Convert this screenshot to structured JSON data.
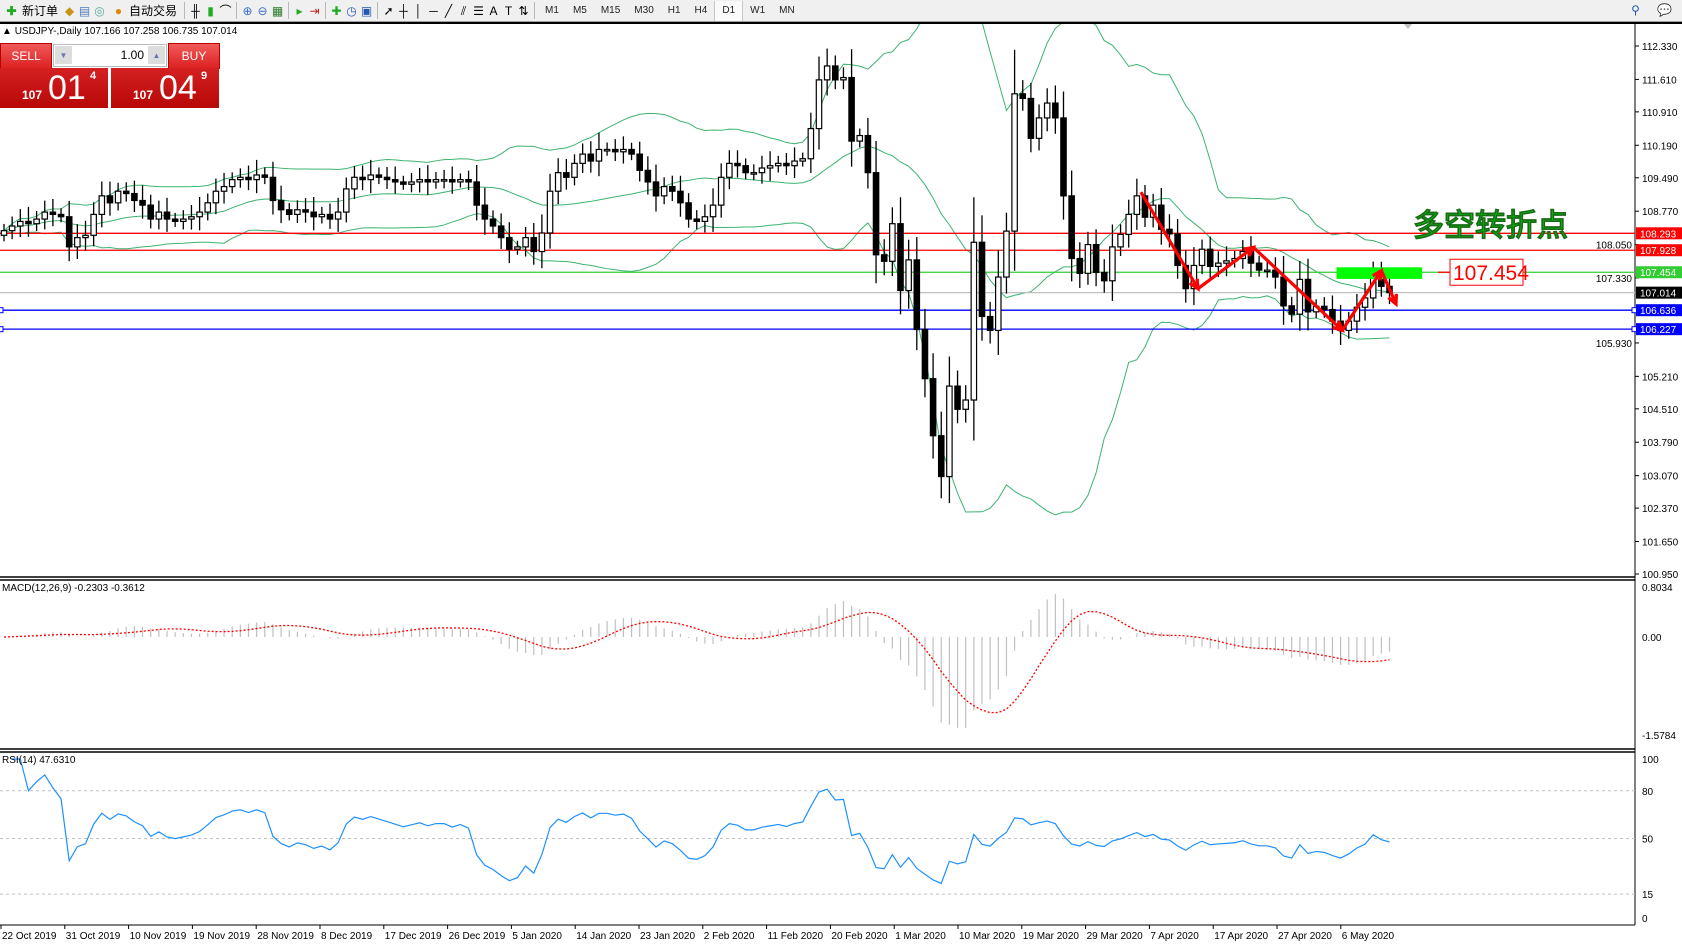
{
  "toolbar": {
    "new_order": "新订单",
    "auto_trading": "自动交易",
    "timeframes": [
      "M1",
      "M5",
      "M15",
      "M30",
      "H1",
      "H4",
      "D1",
      "W1",
      "MN"
    ],
    "active_timeframe": "D1"
  },
  "chart_info": "USDJPY-,Daily  107.166 107.258 106.735 107.014",
  "trade_panel": {
    "sell": "SELL",
    "buy": "BUY",
    "lots": "1.00",
    "bid_prefix": "107",
    "bid_main": "01",
    "bid_pip": "4",
    "ask_prefix": "107",
    "ask_main": "04",
    "ask_pip": "9"
  },
  "chart_data": {
    "type": "candlestick",
    "symbol": "USDJPY-",
    "timeframe": "Daily",
    "ylim": [
      100.95,
      112.33
    ],
    "closes": [
      108.35,
      108.45,
      108.55,
      108.5,
      108.6,
      108.75,
      108.7,
      108.65,
      108.0,
      108.2,
      108.25,
      108.7,
      109.1,
      108.95,
      109.2,
      109.15,
      109.0,
      108.9,
      108.6,
      108.75,
      108.6,
      108.55,
      108.6,
      108.65,
      108.75,
      108.95,
      109.2,
      109.3,
      109.45,
      109.5,
      109.45,
      109.55,
      109.5,
      109.0,
      108.8,
      108.7,
      108.8,
      108.75,
      108.65,
      108.7,
      108.6,
      108.75,
      109.25,
      109.5,
      109.45,
      109.55,
      109.5,
      109.45,
      109.4,
      109.35,
      109.4,
      109.45,
      109.4,
      109.45,
      109.45,
      109.4,
      109.45,
      109.4,
      108.9,
      108.6,
      108.45,
      108.2,
      107.95,
      108.0,
      108.2,
      107.9,
      108.3,
      109.2,
      109.6,
      109.5,
      109.8,
      110.0,
      109.85,
      110.1,
      110.1,
      110.05,
      110.1,
      110.0,
      109.65,
      109.4,
      109.1,
      109.3,
      109.2,
      108.95,
      108.6,
      108.55,
      108.65,
      108.9,
      109.5,
      109.8,
      109.75,
      109.6,
      109.6,
      109.7,
      109.75,
      109.8,
      109.75,
      109.85,
      109.9,
      110.55,
      111.6,
      111.9,
      111.6,
      111.65,
      110.28,
      110.4,
      109.6,
      107.83,
      107.69,
      108.5,
      107.06,
      107.72,
      106.22,
      105.16,
      103.93,
      103.05,
      105.0,
      104.5,
      104.7,
      108.1,
      106.5,
      106.2,
      107.35,
      108.34,
      111.3,
      111.2,
      110.34,
      110.78,
      111.1,
      110.78,
      109.1,
      107.75,
      107.43,
      108.05,
      107.45,
      107.27,
      108.0,
      108.27,
      108.7,
      109.1,
      108.64,
      108.9,
      108.38,
      108.28,
      107.6,
      107.1,
      107.6,
      107.95,
      107.58,
      107.65,
      107.7,
      107.75,
      107.9,
      107.65,
      107.5,
      107.5,
      107.35,
      106.73,
      106.55,
      107.3,
      106.6,
      106.72,
      106.65,
      106.4,
      106.2,
      106.4,
      106.7,
      106.9,
      107.43,
      107.15,
      107.014
    ],
    "price_ticks": [
      "112.330",
      "111.610",
      "110.910",
      "110.190",
      "109.490",
      "108.770",
      "108.050",
      "107.330",
      "105.930",
      "105.210",
      "104.510",
      "103.790",
      "103.070",
      "102.370",
      "101.650",
      "100.950"
    ],
    "date_labels": [
      "22 Oct 2019",
      "31 Oct 2019",
      "10 Nov 2019",
      "19 Nov 2019",
      "28 Nov 2019",
      "8 Dec 2019",
      "17 Dec 2019",
      "26 Dec 2019",
      "5 Jan 2020",
      "14 Jan 2020",
      "23 Jan 2020",
      "2 Feb 2020",
      "11 Feb 2020",
      "20 Feb 2020",
      "1 Mar 2020",
      "10 Mar 2020",
      "19 Mar 2020",
      "29 Mar 2020",
      "7 Apr 2020",
      "17 Apr 2020",
      "27 Apr 2020",
      "6 May 2020"
    ],
    "horizontal_lines": [
      {
        "price": 108.293,
        "label": "108.293",
        "color": "#ff0000"
      },
      {
        "price": 107.928,
        "label": "107.928",
        "color": "#ff0000"
      },
      {
        "price": 107.454,
        "label": "107.454",
        "color": "#32cd32"
      },
      {
        "price": 107.014,
        "label": "107.014",
        "color": "#c0c0c0",
        "tag_color": "#000000"
      },
      {
        "price": 106.636,
        "label": "106.636",
        "color": "#0000ff"
      },
      {
        "price": 106.227,
        "label": "106.227",
        "color": "#0000ff"
      }
    ],
    "bollinger": {
      "period": 20,
      "deviation": 2,
      "color": "#3cb371"
    },
    "annotation_text": "多空转折点",
    "annotation_color": "#00cc00",
    "price_label": "107.454",
    "zone": {
      "bar_from": 163.5,
      "bar_to": 174,
      "price_top": 107.56,
      "price_bottom": 107.31,
      "color": "#00ff00"
    },
    "zigzag": [
      {
        "bar": 139.5,
        "price": 109.18
      },
      {
        "bar": 146.5,
        "price": 107.1
      },
      {
        "bar": 153.3,
        "price": 107.99
      },
      {
        "bar": 164.2,
        "price": 106.2
      },
      {
        "bar": 169.0,
        "price": 107.49
      },
      {
        "bar": 170.8,
        "price": 106.77
      }
    ],
    "zigzag_color": "#ff0000"
  },
  "macd": {
    "label": "MACD(12,26,9) -0.2303 -0.3612",
    "ticks": [
      "0.8034",
      "0.00",
      "-1.5784"
    ],
    "max": 0.8034,
    "min": -1.5784,
    "histogram_color": "#c0c0c0",
    "signal_color": "#ff0000"
  },
  "rsi": {
    "label": "RSI(14) 47.6310",
    "ticks": [
      "100",
      "80",
      "50",
      "15",
      "0"
    ],
    "levels": [
      80,
      50,
      15
    ],
    "color": "#1e90ff"
  }
}
